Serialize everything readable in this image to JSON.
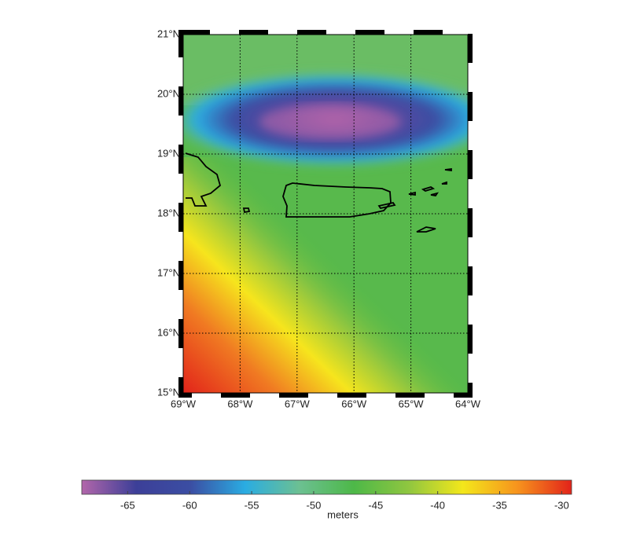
{
  "map": {
    "lonlim": [
      -69,
      -64
    ],
    "latlim": [
      15,
      21
    ],
    "lonticks": [
      {
        "value": -69,
        "label": "69°W"
      },
      {
        "value": -68,
        "label": "68°W"
      },
      {
        "value": -67,
        "label": "67°W"
      },
      {
        "value": -66,
        "label": "66°W"
      },
      {
        "value": -65,
        "label": "65°W"
      },
      {
        "value": -64,
        "label": "64°W"
      }
    ],
    "latticks": [
      {
        "value": 21,
        "label": "21°N"
      },
      {
        "value": 20,
        "label": "20°N"
      },
      {
        "value": 19,
        "label": "19°N"
      },
      {
        "value": 18,
        "label": "18°N"
      },
      {
        "value": 17,
        "label": "17°N"
      },
      {
        "value": 16,
        "label": "16°N"
      },
      {
        "value": 15,
        "label": "15°N"
      }
    ],
    "grid": true
  },
  "colorbar": {
    "label": "meters",
    "clim": [
      -68.7,
      -29.2
    ],
    "ticks": [
      -65,
      -60,
      -55,
      -50,
      -45,
      -40,
      -35,
      -30
    ],
    "colormap": [
      "#b266aa",
      "#3c3f98",
      "#3b4ea3",
      "#2aace2",
      "#6cc092",
      "#4db848",
      "#8fc640",
      "#f3e71b",
      "#f7941d",
      "#e2231a"
    ]
  }
}
